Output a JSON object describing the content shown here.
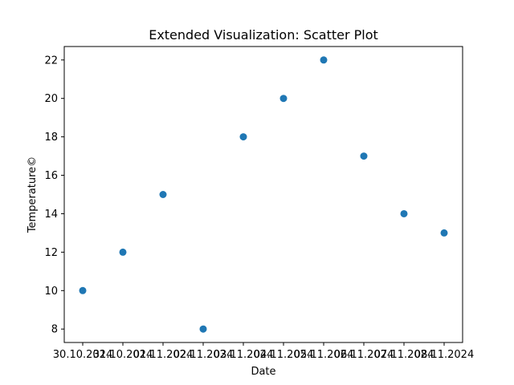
{
  "chart_data": {
    "type": "scatter",
    "title": "Extended Visualization: Scatter Plot",
    "xlabel": "Date",
    "ylabel": "Temperature©",
    "x": [
      "30.10.2024",
      "31.10.2024",
      "01.11.2024",
      "02.11.2024",
      "03.11.2024",
      "04.11.2024",
      "05.11.2024",
      "06.11.2024",
      "07.11.2024",
      "08.11.2024"
    ],
    "x_tick_labels": [
      "30.10.2024",
      "31.10.2024",
      "01.11.2024",
      "02.11.2024",
      "03.11.2024",
      "04.11.2024",
      "05.11.2024",
      "06.11.2024",
      "07.11.2024",
      "08.11.2024"
    ],
    "y": [
      10,
      12,
      15,
      8,
      18,
      20,
      22,
      17,
      14,
      13
    ],
    "y_ticks": [
      8,
      10,
      12,
      14,
      16,
      18,
      20,
      22
    ],
    "ylim": [
      7.3,
      22.7
    ],
    "grid": false,
    "marker_color": "#1f77b4"
  }
}
